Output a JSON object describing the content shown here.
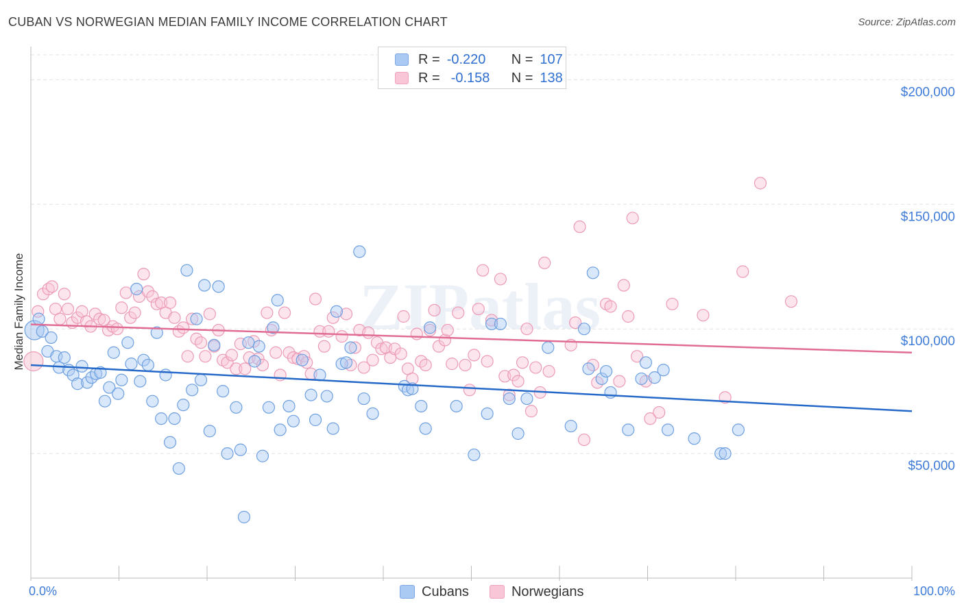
{
  "header": {
    "title": "CUBAN VS NORWEGIAN MEDIAN FAMILY INCOME CORRELATION CHART",
    "source": "Source: ZipAtlas.com"
  },
  "legend": {
    "cubans": {
      "r_label": "R =",
      "r_value": "-0.220",
      "n_label": "N =",
      "n_value": "107"
    },
    "norwegians": {
      "r_label": "R =",
      "r_value": "-0.158",
      "n_label": "N =",
      "n_value": "138"
    }
  },
  "bottom_legend": {
    "cubans": "Cubans",
    "norwegians": "Norwegians"
  },
  "watermark": "ZIPatlas",
  "colors": {
    "blue_fill": "#aac9f3",
    "blue_stroke": "#6d9fe0",
    "blue_line": "#2468c8",
    "pink_fill": "#f8c6d6",
    "pink_stroke": "#ec9ab5",
    "pink_line": "#e06b94",
    "axis_label": "#3d7bd8",
    "grid": "#e2e2e2"
  },
  "chart_data": {
    "type": "scatter",
    "title": "CUBAN VS NORWEGIAN MEDIAN FAMILY INCOME CORRELATION CHART",
    "xlabel": "",
    "ylabel": "Median Family Income",
    "xlim": [
      0,
      100
    ],
    "ylim": [
      0,
      210000
    ],
    "x_tick_labels": [
      "0.0%",
      "100.0%"
    ],
    "y_ticks": [
      50000,
      100000,
      150000,
      200000
    ],
    "y_tick_labels": [
      "$50,000",
      "$100,000",
      "$150,000",
      "$200,000"
    ],
    "grid": true,
    "series": [
      {
        "name": "Cubans",
        "r": -0.22,
        "n": 107,
        "trend": {
          "x": [
            0,
            100
          ],
          "y": [
            85500,
            67000
          ]
        },
        "points": [
          [
            0.4,
            99500
          ],
          [
            0.9,
            104000
          ],
          [
            1.3,
            99000
          ],
          [
            1.9,
            91000
          ],
          [
            2.3,
            96500
          ],
          [
            2.9,
            89000
          ],
          [
            3.2,
            84500
          ],
          [
            3.8,
            88500
          ],
          [
            4.3,
            83500
          ],
          [
            4.8,
            81500
          ],
          [
            5.3,
            78000
          ],
          [
            5.8,
            85000
          ],
          [
            6.4,
            78500
          ],
          [
            6.9,
            80500
          ],
          [
            7.4,
            82000
          ],
          [
            7.9,
            82500
          ],
          [
            8.4,
            71000
          ],
          [
            8.9,
            76500
          ],
          [
            9.4,
            90500
          ],
          [
            9.9,
            74000
          ],
          [
            10.3,
            79500
          ],
          [
            11.0,
            94500
          ],
          [
            11.4,
            86000
          ],
          [
            12.0,
            116000
          ],
          [
            12.4,
            79000
          ],
          [
            12.8,
            87500
          ],
          [
            13.3,
            85500
          ],
          [
            13.8,
            71000
          ],
          [
            14.3,
            98500
          ],
          [
            14.8,
            64000
          ],
          [
            15.3,
            81500
          ],
          [
            15.8,
            54500
          ],
          [
            16.3,
            64000
          ],
          [
            16.8,
            44000
          ],
          [
            17.3,
            69500
          ],
          [
            17.7,
            123500
          ],
          [
            18.3,
            75500
          ],
          [
            18.8,
            104000
          ],
          [
            19.3,
            79500
          ],
          [
            19.7,
            117500
          ],
          [
            20.3,
            59000
          ],
          [
            20.8,
            93500
          ],
          [
            21.3,
            117000
          ],
          [
            21.8,
            75000
          ],
          [
            22.3,
            50000
          ],
          [
            23.3,
            68500
          ],
          [
            23.8,
            51500
          ],
          [
            24.2,
            24500
          ],
          [
            24.7,
            94500
          ],
          [
            25.4,
            87000
          ],
          [
            25.9,
            93000
          ],
          [
            26.3,
            49000
          ],
          [
            27.0,
            68500
          ],
          [
            27.5,
            100500
          ],
          [
            28.0,
            111500
          ],
          [
            28.3,
            59500
          ],
          [
            29.3,
            69000
          ],
          [
            29.8,
            63000
          ],
          [
            30.8,
            87500
          ],
          [
            31.8,
            73500
          ],
          [
            32.3,
            63500
          ],
          [
            32.8,
            81500
          ],
          [
            33.6,
            73000
          ],
          [
            34.3,
            60000
          ],
          [
            34.7,
            107000
          ],
          [
            35.3,
            86000
          ],
          [
            35.8,
            86500
          ],
          [
            36.3,
            92500
          ],
          [
            37.3,
            131000
          ],
          [
            37.8,
            72000
          ],
          [
            38.8,
            66000
          ],
          [
            42.4,
            77000
          ],
          [
            42.8,
            75500
          ],
          [
            43.3,
            76000
          ],
          [
            44.3,
            69000
          ],
          [
            44.8,
            60000
          ],
          [
            45.3,
            100500
          ],
          [
            48.3,
            69000
          ],
          [
            50.3,
            49500
          ],
          [
            51.8,
            66000
          ],
          [
            52.3,
            102000
          ],
          [
            53.3,
            102000
          ],
          [
            54.3,
            72000
          ],
          [
            55.3,
            58000
          ],
          [
            56.3,
            72000
          ],
          [
            58.7,
            92500
          ],
          [
            61.3,
            61000
          ],
          [
            62.8,
            100000
          ],
          [
            63.3,
            84000
          ],
          [
            63.8,
            122500
          ],
          [
            64.8,
            80000
          ],
          [
            65.3,
            83000
          ],
          [
            65.8,
            74500
          ],
          [
            67.8,
            59500
          ],
          [
            69.3,
            80000
          ],
          [
            69.8,
            86500
          ],
          [
            70.8,
            80500
          ],
          [
            71.8,
            83500
          ],
          [
            72.3,
            59500
          ],
          [
            75.3,
            56000
          ],
          [
            78.3,
            50000
          ],
          [
            78.8,
            50000
          ],
          [
            80.3,
            59500
          ]
        ]
      },
      {
        "name": "Norwegians",
        "r": -0.158,
        "n": 138,
        "trend": {
          "x": [
            0,
            100
          ],
          "y": [
            101800,
            90500
          ]
        },
        "points": [
          [
            0.3,
            87000
          ],
          [
            0.8,
            107000
          ],
          [
            1.4,
            114000
          ],
          [
            2.0,
            116000
          ],
          [
            2.4,
            117000
          ],
          [
            2.8,
            108000
          ],
          [
            3.3,
            104000
          ],
          [
            3.8,
            114000
          ],
          [
            4.2,
            108000
          ],
          [
            4.7,
            102500
          ],
          [
            5.3,
            104500
          ],
          [
            5.8,
            107000
          ],
          [
            6.3,
            103000
          ],
          [
            6.8,
            101000
          ],
          [
            7.3,
            106000
          ],
          [
            7.8,
            104000
          ],
          [
            8.3,
            103500
          ],
          [
            8.8,
            99500
          ],
          [
            9.3,
            101000
          ],
          [
            9.8,
            100000
          ],
          [
            10.3,
            108500
          ],
          [
            10.8,
            114500
          ],
          [
            11.3,
            104500
          ],
          [
            11.8,
            106500
          ],
          [
            12.3,
            113000
          ],
          [
            12.8,
            122000
          ],
          [
            13.3,
            115000
          ],
          [
            13.8,
            113000
          ],
          [
            14.3,
            110000
          ],
          [
            14.8,
            110500
          ],
          [
            15.3,
            106500
          ],
          [
            15.8,
            110500
          ],
          [
            16.3,
            104500
          ],
          [
            16.8,
            99000
          ],
          [
            17.3,
            100500
          ],
          [
            17.8,
            89000
          ],
          [
            18.3,
            104000
          ],
          [
            18.8,
            96000
          ],
          [
            19.3,
            94500
          ],
          [
            19.8,
            89000
          ],
          [
            20.3,
            106000
          ],
          [
            20.8,
            93000
          ],
          [
            21.3,
            99500
          ],
          [
            21.8,
            87500
          ],
          [
            22.3,
            86500
          ],
          [
            22.8,
            89500
          ],
          [
            23.3,
            84000
          ],
          [
            23.8,
            94000
          ],
          [
            24.3,
            84000
          ],
          [
            24.8,
            88500
          ],
          [
            25.3,
            95000
          ],
          [
            25.8,
            88000
          ],
          [
            26.3,
            85500
          ],
          [
            26.8,
            106500
          ],
          [
            27.3,
            99500
          ],
          [
            27.8,
            90500
          ],
          [
            28.3,
            81500
          ],
          [
            28.8,
            106500
          ],
          [
            29.3,
            90500
          ],
          [
            29.8,
            88500
          ],
          [
            30.3,
            88000
          ],
          [
            31.0,
            89000
          ],
          [
            31.3,
            86500
          ],
          [
            31.8,
            82000
          ],
          [
            32.3,
            112000
          ],
          [
            32.8,
            99000
          ],
          [
            33.3,
            93000
          ],
          [
            33.8,
            99000
          ],
          [
            34.3,
            104500
          ],
          [
            35.3,
            97000
          ],
          [
            35.8,
            106000
          ],
          [
            36.3,
            85500
          ],
          [
            36.8,
            92500
          ],
          [
            37.3,
            99500
          ],
          [
            37.8,
            84500
          ],
          [
            38.3,
            98500
          ],
          [
            38.8,
            87500
          ],
          [
            39.3,
            94500
          ],
          [
            39.8,
            92000
          ],
          [
            40.3,
            92500
          ],
          [
            40.8,
            88500
          ],
          [
            41.3,
            92000
          ],
          [
            42.0,
            90000
          ],
          [
            42.3,
            105000
          ],
          [
            42.8,
            84000
          ],
          [
            43.3,
            80000
          ],
          [
            43.8,
            98000
          ],
          [
            44.3,
            87000
          ],
          [
            44.8,
            85500
          ],
          [
            45.3,
            99500
          ],
          [
            45.8,
            107500
          ],
          [
            46.3,
            93000
          ],
          [
            47.0,
            95500
          ],
          [
            47.3,
            99500
          ],
          [
            47.8,
            86000
          ],
          [
            48.5,
            106500
          ],
          [
            49.3,
            85500
          ],
          [
            49.8,
            75500
          ],
          [
            50.3,
            89500
          ],
          [
            50.8,
            108000
          ],
          [
            51.3,
            123500
          ],
          [
            51.8,
            87000
          ],
          [
            52.3,
            103500
          ],
          [
            53.3,
            120000
          ],
          [
            53.8,
            81000
          ],
          [
            54.3,
            73500
          ],
          [
            54.8,
            81500
          ],
          [
            55.3,
            79000
          ],
          [
            55.8,
            86500
          ],
          [
            56.3,
            100000
          ],
          [
            56.8,
            67000
          ],
          [
            57.3,
            84500
          ],
          [
            57.8,
            74500
          ],
          [
            58.3,
            126500
          ],
          [
            58.8,
            83000
          ],
          [
            61.3,
            93500
          ],
          [
            61.8,
            102500
          ],
          [
            62.3,
            141000
          ],
          [
            62.8,
            55500
          ],
          [
            63.8,
            85500
          ],
          [
            64.3,
            78500
          ],
          [
            65.3,
            110000
          ],
          [
            65.8,
            109000
          ],
          [
            66.8,
            79000
          ],
          [
            67.3,
            117500
          ],
          [
            67.8,
            105000
          ],
          [
            68.3,
            144500
          ],
          [
            68.8,
            89000
          ],
          [
            69.8,
            79000
          ],
          [
            70.3,
            64000
          ],
          [
            71.3,
            66500
          ],
          [
            72.8,
            110000
          ],
          [
            76.3,
            105500
          ],
          [
            78.8,
            72500
          ],
          [
            80.8,
            123000
          ],
          [
            82.8,
            158500
          ],
          [
            86.3,
            111000
          ]
        ]
      }
    ]
  }
}
